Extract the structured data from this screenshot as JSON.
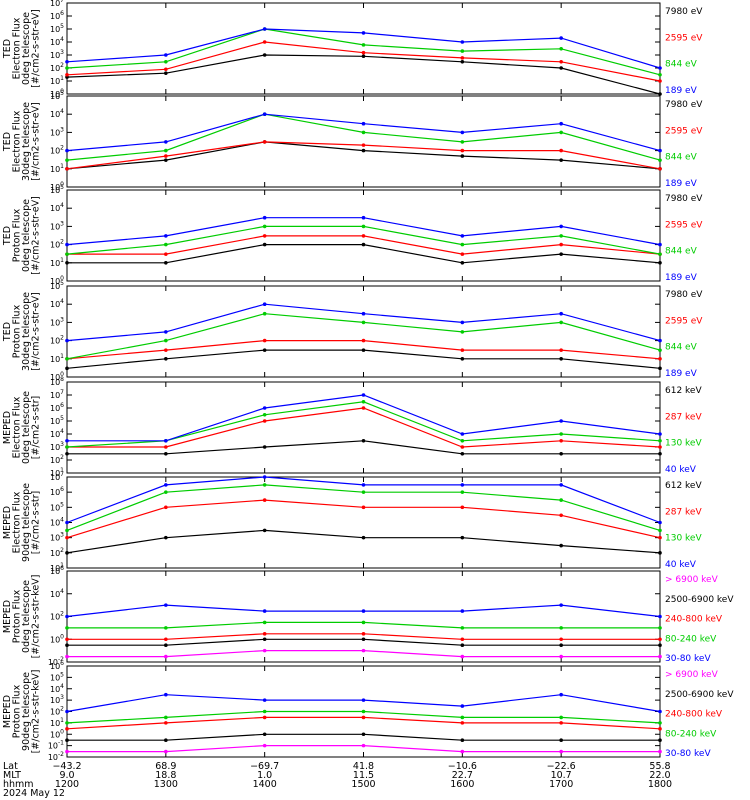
{
  "figure": {
    "date_label": "2024 May 12",
    "x_axis": {
      "row_labels": [
        "Lat",
        "MLT",
        "hhmm"
      ],
      "columns": [
        {
          "time": "1200",
          "lat": "−43.2",
          "mlt": "9.0"
        },
        {
          "time": "1300",
          "lat": "68.9",
          "mlt": "18.8"
        },
        {
          "time": "1400",
          "lat": "−69.7",
          "mlt": "1.0"
        },
        {
          "time": "1500",
          "lat": "41.8",
          "mlt": "11.5"
        },
        {
          "time": "1600",
          "lat": "−10.6",
          "mlt": "22.7"
        },
        {
          "time": "1700",
          "lat": "−22.6",
          "mlt": "10.7"
        },
        {
          "time": "1800",
          "lat": "55.8",
          "mlt": "22.0"
        }
      ]
    }
  },
  "chart_data": [
    {
      "type": "line",
      "ylabel": [
        "TED",
        "Electron Flux",
        "0deg telescope",
        "[#/cm2-s-str-eV]"
      ],
      "ylim": [
        1,
        10000000
      ],
      "yscale": "log",
      "ytick_exponents": [
        0,
        1,
        2,
        3,
        4,
        5,
        6,
        7
      ],
      "x": [
        "1200",
        "1300",
        "1400",
        "1500",
        "1600",
        "1700",
        "1800"
      ],
      "colors": [
        "#000000",
        "#ff0000",
        "#00ff00",
        "#0000ff"
      ],
      "legend": [
        {
          "label": "7980 eV",
          "color": "#000000"
        },
        {
          "label": "2595 eV",
          "color": "#ff0000"
        },
        {
          "label": "844 eV",
          "color": "#00cc00"
        },
        {
          "label": "189 eV",
          "color": "#0000ff"
        }
      ],
      "series": [
        {
          "name": "7980 eV",
          "values": [
            20,
            40,
            1000,
            800,
            300,
            100,
            1
          ]
        },
        {
          "name": "2595 eV",
          "values": [
            30,
            80,
            10000,
            1500,
            600,
            300,
            10
          ]
        },
        {
          "name": "844 eV",
          "values": [
            100,
            300,
            100000,
            6000,
            2000,
            3000,
            30
          ]
        },
        {
          "name": "189 eV",
          "values": [
            300,
            1000,
            100000,
            50000,
            10000,
            20000,
            100
          ]
        }
      ]
    },
    {
      "type": "line",
      "ylabel": [
        "TED",
        "Electron Flux",
        "30deg telescope",
        "[#/cm2-s-str-eV]"
      ],
      "ylim": [
        1,
        100000
      ],
      "yscale": "log",
      "ytick_exponents": [
        0,
        1,
        2,
        3,
        4,
        5
      ],
      "x": [
        "1200",
        "1300",
        "1400",
        "1500",
        "1600",
        "1700",
        "1800"
      ],
      "colors": [
        "#000000",
        "#ff0000",
        "#00ff00",
        "#0000ff"
      ],
      "legend": [
        {
          "label": "7980 eV",
          "color": "#000000"
        },
        {
          "label": "2595 eV",
          "color": "#ff0000"
        },
        {
          "label": "844 eV",
          "color": "#00cc00"
        },
        {
          "label": "189 eV",
          "color": "#0000ff"
        }
      ],
      "series": [
        {
          "name": "7980 eV",
          "values": [
            10,
            30,
            300,
            100,
            50,
            30,
            10
          ]
        },
        {
          "name": "2595 eV",
          "values": [
            10,
            50,
            300,
            200,
            100,
            100,
            10
          ]
        },
        {
          "name": "844 eV",
          "values": [
            30,
            100,
            10000,
            1000,
            300,
            1000,
            30
          ]
        },
        {
          "name": "189 eV",
          "values": [
            100,
            300,
            10000,
            3000,
            1000,
            3000,
            100
          ]
        }
      ]
    },
    {
      "type": "line",
      "ylabel": [
        "TED",
        "Proton Flux",
        "0deg telescope",
        "[#/cm2-s-str-eV]"
      ],
      "ylim": [
        1,
        100000
      ],
      "yscale": "log",
      "ytick_exponents": [
        0,
        1,
        2,
        3,
        4,
        5
      ],
      "x": [
        "1200",
        "1300",
        "1400",
        "1500",
        "1600",
        "1700",
        "1800"
      ],
      "colors": [
        "#000000",
        "#ff0000",
        "#00ff00",
        "#0000ff"
      ],
      "legend": [
        {
          "label": "7980 eV",
          "color": "#000000"
        },
        {
          "label": "2595 eV",
          "color": "#ff0000"
        },
        {
          "label": "844 eV",
          "color": "#00cc00"
        },
        {
          "label": "189 eV",
          "color": "#0000ff"
        }
      ],
      "series": [
        {
          "name": "7980 eV",
          "values": [
            10,
            10,
            100,
            100,
            10,
            30,
            10
          ]
        },
        {
          "name": "2595 eV",
          "values": [
            30,
            30,
            300,
            300,
            30,
            100,
            30
          ]
        },
        {
          "name": "844 eV",
          "values": [
            30,
            100,
            1000,
            1000,
            100,
            300,
            30
          ]
        },
        {
          "name": "189 eV",
          "values": [
            100,
            300,
            3000,
            3000,
            300,
            1000,
            100
          ]
        }
      ]
    },
    {
      "type": "line",
      "ylabel": [
        "TED",
        "Proton Flux",
        "30deg telescope",
        "[#/cm2-s-str-eV]"
      ],
      "ylim": [
        1,
        100000
      ],
      "yscale": "log",
      "ytick_exponents": [
        0,
        1,
        2,
        3,
        4,
        5
      ],
      "x": [
        "1200",
        "1300",
        "1400",
        "1500",
        "1600",
        "1700",
        "1800"
      ],
      "colors": [
        "#000000",
        "#ff0000",
        "#00ff00",
        "#0000ff"
      ],
      "legend": [
        {
          "label": "7980 eV",
          "color": "#000000"
        },
        {
          "label": "2595 eV",
          "color": "#ff0000"
        },
        {
          "label": "844 eV",
          "color": "#00cc00"
        },
        {
          "label": "189 eV",
          "color": "#0000ff"
        }
      ],
      "series": [
        {
          "name": "7980 eV",
          "values": [
            3,
            10,
            30,
            30,
            10,
            10,
            3
          ]
        },
        {
          "name": "2595 eV",
          "values": [
            10,
            30,
            100,
            100,
            30,
            30,
            10
          ]
        },
        {
          "name": "844 eV",
          "values": [
            10,
            100,
            3000,
            1000,
            300,
            1000,
            30
          ]
        },
        {
          "name": "189 eV",
          "values": [
            100,
            300,
            10000,
            3000,
            1000,
            3000,
            100
          ]
        }
      ]
    },
    {
      "type": "line",
      "ylabel": [
        "MEPED",
        "Electron Flux",
        "0deg telescope",
        "[#/cm2-s-str]"
      ],
      "ylim": [
        10,
        100000000
      ],
      "yscale": "log",
      "ytick_exponents": [
        1,
        2,
        3,
        4,
        5,
        6,
        7,
        8
      ],
      "x": [
        "1200",
        "1300",
        "1400",
        "1500",
        "1600",
        "1700",
        "1800"
      ],
      "colors": [
        "#000000",
        "#ff0000",
        "#00ff00",
        "#0000ff"
      ],
      "legend": [
        {
          "label": "612 keV",
          "color": "#000000"
        },
        {
          "label": "287 keV",
          "color": "#ff0000"
        },
        {
          "label": "130 keV",
          "color": "#00cc00"
        },
        {
          "label": "40 keV",
          "color": "#0000ff"
        }
      ],
      "series": [
        {
          "name": "612 keV",
          "values": [
            300,
            300,
            1000,
            3000,
            300,
            300,
            300
          ]
        },
        {
          "name": "287 keV",
          "values": [
            1000,
            1000,
            100000,
            1000000,
            1000,
            3000,
            1000
          ]
        },
        {
          "name": "130 keV",
          "values": [
            1000,
            3000,
            300000,
            3000000,
            3000,
            10000,
            3000
          ]
        },
        {
          "name": "40 keV",
          "values": [
            3000,
            3000,
            1000000,
            10000000,
            10000,
            100000,
            10000
          ]
        }
      ]
    },
    {
      "type": "line",
      "ylabel": [
        "MEPED",
        "Electron Flux",
        "90deg telescope",
        "[#/cm2-s-str]"
      ],
      "ylim": [
        10,
        10000000
      ],
      "yscale": "log",
      "ytick_exponents": [
        1,
        2,
        3,
        4,
        5,
        6,
        7
      ],
      "x": [
        "1200",
        "1300",
        "1400",
        "1500",
        "1600",
        "1700",
        "1800"
      ],
      "colors": [
        "#000000",
        "#ff0000",
        "#00ff00",
        "#0000ff"
      ],
      "legend": [
        {
          "label": "612 keV",
          "color": "#000000"
        },
        {
          "label": "287 keV",
          "color": "#ff0000"
        },
        {
          "label": "130 keV",
          "color": "#00cc00"
        },
        {
          "label": "40 keV",
          "color": "#0000ff"
        }
      ],
      "series": [
        {
          "name": "612 keV",
          "values": [
            100,
            1000,
            3000,
            1000,
            1000,
            300,
            100
          ]
        },
        {
          "name": "287 keV",
          "values": [
            1000,
            100000,
            300000,
            100000,
            100000,
            30000,
            1000
          ]
        },
        {
          "name": "130 keV",
          "values": [
            3000,
            1000000,
            3000000,
            1000000,
            1000000,
            300000,
            3000
          ]
        },
        {
          "name": "40 keV",
          "values": [
            10000,
            3000000,
            10000000,
            3000000,
            3000000,
            3000000,
            10000
          ]
        }
      ]
    },
    {
      "type": "line",
      "ylabel": [
        "MEPED",
        "Proton Flux",
        "0deg telescope",
        "[#/cm2-s-str-keV]"
      ],
      "ylim": [
        0.01,
        1000000
      ],
      "yscale": "log",
      "ytick_exponents": [
        -2,
        0,
        2,
        4,
        6
      ],
      "x": [
        "1200",
        "1300",
        "1400",
        "1500",
        "1600",
        "1700",
        "1800"
      ],
      "colors": [
        "#ff00ff",
        "#000000",
        "#ff0000",
        "#00ff00",
        "#0000ff"
      ],
      "legend": [
        {
          "label": "> 6900 keV",
          "color": "#ff00ff"
        },
        {
          "label": "2500-6900 keV",
          "color": "#000000"
        },
        {
          "label": "240-800 keV",
          "color": "#ff0000"
        },
        {
          "label": "80-240 keV",
          "color": "#00cc00"
        },
        {
          "label": "30-80 keV",
          "color": "#0000ff"
        }
      ],
      "series": [
        {
          "name": "> 6900 keV",
          "values": [
            0.03,
            0.03,
            0.1,
            0.1,
            0.03,
            0.03,
            0.03
          ]
        },
        {
          "name": "2500-6900 keV",
          "values": [
            0.3,
            0.3,
            1,
            1,
            0.3,
            0.3,
            0.3
          ]
        },
        {
          "name": "240-800 keV",
          "values": [
            1,
            1,
            3,
            3,
            1,
            1,
            1
          ]
        },
        {
          "name": "80-240 keV",
          "values": [
            10,
            10,
            30,
            30,
            10,
            10,
            10
          ]
        },
        {
          "name": "30-80 keV",
          "values": [
            100,
            1000,
            300,
            300,
            300,
            1000,
            100
          ]
        }
      ]
    },
    {
      "type": "line",
      "ylabel": [
        "MEPED",
        "Proton Flux",
        "90deg telescope",
        "[#/cm2-s-str-keV]"
      ],
      "ylim": [
        0.01,
        1000000
      ],
      "yscale": "log",
      "ytick_exponents": [
        -2,
        -1,
        0,
        1,
        2,
        3,
        4,
        5,
        6
      ],
      "x": [
        "1200",
        "1300",
        "1400",
        "1500",
        "1600",
        "1700",
        "1800"
      ],
      "colors": [
        "#ff00ff",
        "#000000",
        "#ff0000",
        "#00ff00",
        "#0000ff"
      ],
      "legend": [
        {
          "label": "> 6900 keV",
          "color": "#ff00ff"
        },
        {
          "label": "2500-6900 keV",
          "color": "#000000"
        },
        {
          "label": "240-800 keV",
          "color": "#ff0000"
        },
        {
          "label": "80-240 keV",
          "color": "#00cc00"
        },
        {
          "label": "30-80 keV",
          "color": "#0000ff"
        }
      ],
      "series": [
        {
          "name": "> 6900 keV",
          "values": [
            0.03,
            0.03,
            0.1,
            0.1,
            0.03,
            0.03,
            0.03
          ]
        },
        {
          "name": "2500-6900 keV",
          "values": [
            0.3,
            0.3,
            1,
            1,
            0.3,
            0.3,
            0.3
          ]
        },
        {
          "name": "240-800 keV",
          "values": [
            3,
            10,
            30,
            30,
            10,
            10,
            3
          ]
        },
        {
          "name": "80-240 keV",
          "values": [
            10,
            30,
            100,
            100,
            30,
            30,
            10
          ]
        },
        {
          "name": "30-80 keV",
          "values": [
            100,
            3000,
            1000,
            1000,
            300,
            3000,
            100
          ]
        }
      ]
    }
  ]
}
